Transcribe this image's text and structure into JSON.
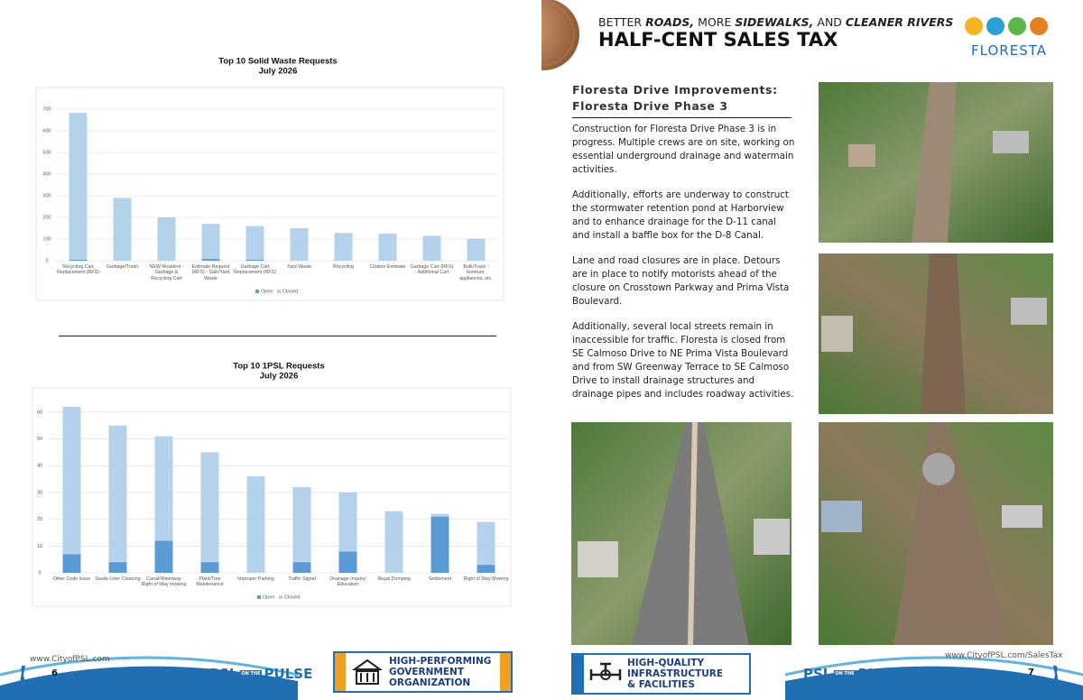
{
  "chart_data": [
    {
      "type": "bar",
      "stacked": true,
      "title": "Top 10 Solid Waste Requests",
      "subtitle": "July 2026",
      "categories": [
        "Recycling Cart Replacement (RFS)",
        "Garbage/Trash",
        "NEW Resident - Garbage & Recycling Cart",
        "Estimate Request (RFS) - Sale/Yard Waste",
        "Garbage Cart Replacement (RFS)",
        "Yard Waste",
        "Recycling",
        "Citation Estimate",
        "Garbage Cart (RFS) - Additional Cart",
        "Bulk/Trash - furniture, appliances, etc."
      ],
      "series": [
        {
          "name": "Open",
          "color": "#5b9bd5",
          "values": [
            5,
            0,
            0,
            8,
            5,
            0,
            0,
            0,
            0,
            0
          ]
        },
        {
          "name": "Closed",
          "color": "#b4d2ec",
          "values": [
            678,
            290,
            200,
            162,
            155,
            150,
            128,
            125,
            115,
            102
          ]
        }
      ],
      "ylim": [
        0,
        750
      ],
      "yticks": [
        0,
        100,
        200,
        300,
        400,
        500,
        600,
        700
      ],
      "grid": true,
      "legend": "bottom"
    },
    {
      "type": "bar",
      "stacked": true,
      "title": "Top 10 1PSL Requests",
      "subtitle": "July 2026",
      "categories": [
        "Other Code Issue",
        "Swale Liner Cleaning",
        "Canal/Waterway Right of Way mowing",
        "Plant/Tree Maintenance",
        "Improper Parking",
        "Traffic Signal",
        "Drainage Inquiry/ Education",
        "Illegal Dumping",
        "Settlement",
        "Right of Way Mowing"
      ],
      "series": [
        {
          "name": "Open",
          "color": "#5b9bd5",
          "values": [
            7,
            4,
            12,
            4,
            0,
            4,
            8,
            0,
            21,
            3
          ]
        },
        {
          "name": "Closed",
          "color": "#b4d2ec",
          "values": [
            55,
            51,
            39,
            41,
            36,
            28,
            22,
            23,
            1,
            16
          ]
        }
      ],
      "ylim": [
        0,
        65
      ],
      "yticks": [
        0,
        10,
        20,
        30,
        40,
        50,
        60
      ],
      "grid": true,
      "legend": "bottom"
    }
  ],
  "header": {
    "tagline": [
      "BETTER",
      "ROADS,",
      "MORE",
      "SIDEWALKS,",
      "AND",
      "CLEANER RIVERS"
    ],
    "title": "HALF-CENT SALES TAX",
    "logo": "FLORESTA"
  },
  "article": {
    "heading": [
      "Floresta Drive Improvements:",
      "Floresta Drive Phase 3"
    ],
    "paragraphs": [
      "Construction for Floresta Drive Phase 3 is in progress. Multiple crews are on site, working on essential underground drainage and watermain activities.",
      "Additionally, efforts are underway to construct the stormwater retention pond at Harborview and to enhance drainage for the D-11 canal and install a baffle box for the D-8 Canal.",
      "Lane and road closures are in place. Detours are in place to notify motorists ahead of the closure on Crosstown Parkway and Prima Vista Boulevard.",
      "Additionally, several local streets remain in inaccessible for traffic. Floresta is closed from SE Calmoso Drive to NE Prima Vista Boulevard and from SW Greenway Terrace to SE Calmoso Drive to install drainage structures and drainage pipes and includes roadway activities."
    ]
  },
  "footer": {
    "left": {
      "url": "www.CityofPSL.com",
      "page": "6"
    },
    "right": {
      "url": "www.CityofPSL.com/SalesTax",
      "page": "7"
    },
    "brand": [
      "PSL",
      "ON THE",
      "PULSE"
    ],
    "badges": [
      [
        "HIGH-PERFORMING",
        "GOVERNMENT",
        "ORGANIZATION"
      ],
      [
        "HIGH-QUALITY",
        "INFRASTRUCTURE",
        "& FACILITIES"
      ]
    ]
  }
}
